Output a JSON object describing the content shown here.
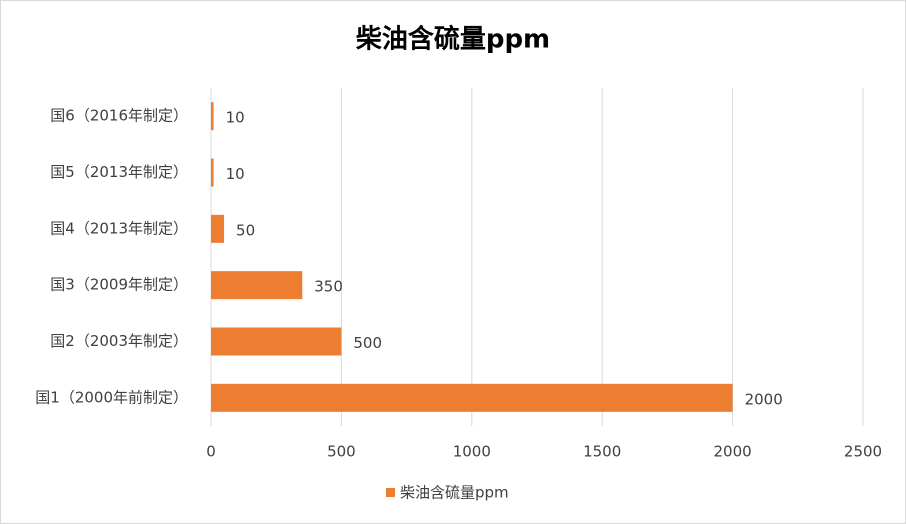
{
  "chart_data": {
    "type": "bar",
    "orientation": "horizontal",
    "title": "柴油含硫量ppm",
    "categories": [
      "国1（2000年前制定）",
      "国2（2003年制定）",
      "国3（2009年制定）",
      "国4（2013年制定）",
      "国5（2013年制定）",
      "国6（2016年制定）"
    ],
    "series": [
      {
        "name": "柴油含硫量ppm",
        "color": "#ed7d31",
        "values": [
          2000,
          500,
          350,
          50,
          10,
          10
        ]
      }
    ],
    "xlim": [
      0,
      2500
    ],
    "xticks": [
      0,
      500,
      1000,
      1500,
      2000,
      2500
    ],
    "grid": true,
    "legend": "bottom"
  }
}
